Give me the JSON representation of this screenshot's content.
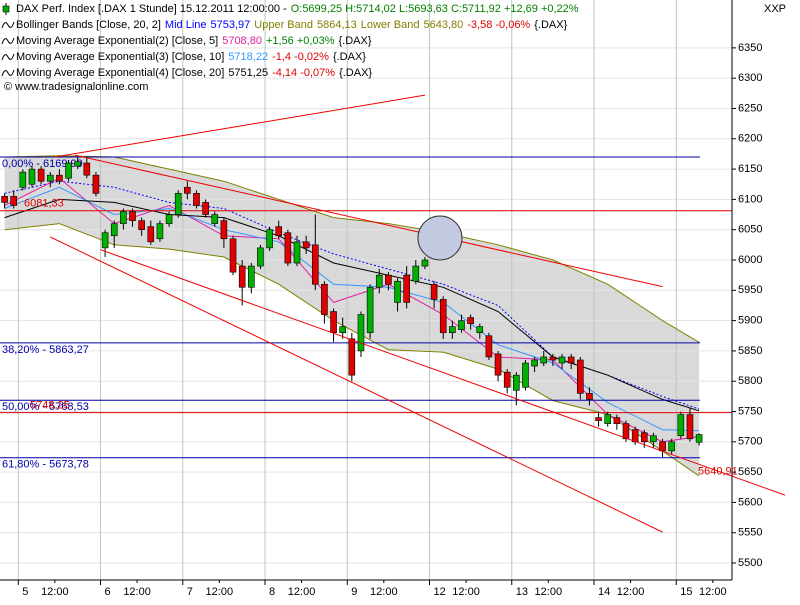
{
  "chart_data": {
    "type": "candlestick",
    "title": "DAX Perf. Index [.DAX  1 Stunde] 15.12.2011 12:00:00 -",
    "quote": "O:5699,25 H:5714,02 L:5693,63 C:5711,92 +12,69 +0,22%",
    "quote_color": "#008000",
    "symbol": "{.DAX}",
    "credit": "© www.tradesignalonline.com",
    "y_axis_label": "XXP",
    "xlim": [
      -0.5,
      79.6
    ],
    "ylim": [
      5472,
      6429
    ],
    "yticks": [
      5500,
      5550,
      5600,
      5650,
      5700,
      5750,
      5800,
      5850,
      5900,
      5950,
      6000,
      6050,
      6100,
      6150,
      6200,
      6250,
      6300,
      6350
    ],
    "xticks": [
      {
        "value": 1.5,
        "label": "5"
      },
      {
        "value": 10.5,
        "label": "6"
      },
      {
        "value": 19.5,
        "label": "7"
      },
      {
        "value": 28.5,
        "label": "8"
      },
      {
        "value": 37.5,
        "label": "9"
      },
      {
        "value": 46.5,
        "label": "12"
      },
      {
        "value": 55.5,
        "label": "13"
      },
      {
        "value": 64.5,
        "label": "14"
      },
      {
        "value": 73.5,
        "label": "15"
      }
    ],
    "xticks_minor": [
      {
        "value": 5.5,
        "label": "12:00"
      },
      {
        "value": 14.5,
        "label": "12:00"
      },
      {
        "value": 23.5,
        "label": "12:00"
      },
      {
        "value": 32.5,
        "label": "12:00"
      },
      {
        "value": 41.5,
        "label": "12:00"
      },
      {
        "value": 50.5,
        "label": "12:00"
      },
      {
        "value": 59.5,
        "label": "12:00"
      },
      {
        "value": 68.5,
        "label": "12:00"
      },
      {
        "value": 77.5,
        "label": "12:00"
      }
    ],
    "grid": true,
    "up_color": "#00b000",
    "down_color": "#e00000",
    "candles": {
      "open": [
        6105,
        6105,
        6120,
        6125,
        6150,
        6130,
        6140,
        6135,
        6155,
        6160,
        6140,
        6020,
        6040,
        6060,
        6080,
        6065,
        6055,
        6035,
        6060,
        6075,
        6120,
        6110,
        6095,
        6060,
        6065,
        6035,
        5990,
        5955,
        5990,
        6020,
        6055,
        6045,
        5995,
        6030,
        6025,
        5960,
        5915,
        5880,
        5870,
        5850,
        5880,
        5955,
        5975,
        5930,
        5975,
        5965,
        5990,
        5960,
        5935,
        5880,
        5885,
        5905,
        5880,
        5875,
        5845,
        5815,
        5785,
        5790,
        5825,
        5830,
        5840,
        5830,
        5840,
        5835,
        5780,
        5740,
        5730,
        5740,
        5730,
        5720,
        5715,
        5700,
        5700,
        5685,
        5710,
        5745,
        5699.25
      ],
      "high": [
        6110,
        6115,
        6150,
        6155,
        6155,
        6145,
        6150,
        6165,
        6170,
        6170,
        6145,
        6050,
        6065,
        6085,
        6085,
        6070,
        6065,
        6065,
        6080,
        6115,
        6130,
        6115,
        6100,
        6080,
        6070,
        6040,
        6000,
        5995,
        6025,
        6055,
        6065,
        6050,
        6040,
        6040,
        6075,
        5965,
        5920,
        5905,
        5880,
        5915,
        5960,
        5985,
        5980,
        5970,
        5990,
        6000,
        6005,
        5965,
        5940,
        5900,
        5910,
        5910,
        5895,
        5880,
        5850,
        5820,
        5815,
        5835,
        5840,
        5850,
        5845,
        5845,
        5845,
        5840,
        5790,
        5750,
        5750,
        5745,
        5735,
        5725,
        5720,
        5715,
        5705,
        5705,
        5750,
        5755,
        5714.02
      ],
      "low": [
        6085,
        6085,
        6115,
        6120,
        6125,
        6120,
        6125,
        6130,
        6150,
        6135,
        6105,
        6005,
        6020,
        6050,
        6055,
        6040,
        6025,
        6030,
        6055,
        6070,
        6100,
        6085,
        6070,
        6055,
        6020,
        5975,
        5925,
        5945,
        5985,
        6015,
        6035,
        5990,
        5990,
        6010,
        5950,
        5895,
        5865,
        5870,
        5800,
        5840,
        5870,
        5945,
        5950,
        5915,
        5920,
        5960,
        5985,
        5920,
        5870,
        5870,
        5880,
        5885,
        5870,
        5835,
        5800,
        5780,
        5760,
        5785,
        5815,
        5825,
        5825,
        5820,
        5820,
        5770,
        5760,
        5725,
        5725,
        5720,
        5700,
        5695,
        5690,
        5690,
        5675,
        5680,
        5705,
        5700,
        5693.63
      ],
      "close": [
        6095,
        6090,
        6145,
        6150,
        6130,
        6140,
        6130,
        6160,
        6162,
        6140,
        6110,
        6045,
        6060,
        6080,
        6065,
        6050,
        6030,
        6060,
        6075,
        6110,
        6110,
        6090,
        6075,
        6075,
        6035,
        5980,
        5955,
        5990,
        6020,
        6050,
        6040,
        5995,
        6030,
        6020,
        5960,
        5910,
        5880,
        5890,
        5810,
        5910,
        5955,
        5975,
        5960,
        5965,
        5930,
        5990,
        6000,
        5935,
        5880,
        5890,
        5900,
        5895,
        5890,
        5840,
        5810,
        5790,
        5810,
        5830,
        5835,
        5840,
        5835,
        5840,
        5830,
        5780,
        5770,
        5735,
        5745,
        5730,
        5705,
        5700,
        5700,
        5710,
        5685,
        5700,
        5745,
        5705,
        5711.92
      ]
    },
    "bollinger": {
      "name": "Bollinger Bands [Close, 20, 2]",
      "change": "-3,58 -0,06%",
      "change_color": "#e00000",
      "fill": "#d9d9d9"
    },
    "series": [
      {
        "name": "Mid Line",
        "color": "#0000ff",
        "dashed": true,
        "value_label": "5753,97",
        "x": [
          0,
          6,
          12,
          18,
          24,
          30,
          36,
          42,
          48,
          54,
          60,
          66,
          72,
          76
        ],
        "values": [
          6110,
          6130,
          6120,
          6095,
          6085,
          6045,
          6010,
          5985,
          5960,
          5925,
          5840,
          5810,
          5775,
          5753.97
        ]
      },
      {
        "name": "Upper Band",
        "color": "#808000",
        "value_label": "5864,13",
        "x": [
          0,
          6,
          12,
          18,
          24,
          30,
          36,
          42,
          48,
          54,
          60,
          66,
          72,
          76
        ],
        "values": [
          6170,
          6172,
          6170,
          6150,
          6130,
          6100,
          6070,
          6060,
          6045,
          6025,
          6000,
          5960,
          5900,
          5864.13
        ]
      },
      {
        "name": "Lower Band",
        "color": "#808000",
        "value_label": "5643,80",
        "x": [
          0,
          6,
          12,
          18,
          24,
          30,
          36,
          42,
          48,
          54,
          60,
          66,
          72,
          76
        ],
        "values": [
          6050,
          6060,
          6025,
          6018,
          6005,
          5960,
          5900,
          5852,
          5848,
          5820,
          5768,
          5745,
          5685,
          5643.8
        ]
      },
      {
        "name": "Moving Average Exponential(2) [Close, 5]",
        "color": "#e020a0",
        "value_label": "5708,80",
        "change": "+1,56 +0,03%",
        "change_color": "#008000",
        "x": [
          0,
          6,
          12,
          18,
          24,
          30,
          36,
          42,
          48,
          54,
          60,
          66,
          72,
          76
        ],
        "values": [
          6090,
          6135,
          6060,
          6090,
          6040,
          6035,
          5930,
          5960,
          5910,
          5840,
          5835,
          5745,
          5700,
          5708.8
        ]
      },
      {
        "name": "Moving Average Exponential(3) [Close, 10]",
        "color": "#3399ff",
        "value_label": "5718,22",
        "change": "-1,4 -0,02%",
        "change_color": "#e00000",
        "x": [
          0,
          6,
          12,
          18,
          24,
          30,
          36,
          42,
          48,
          54,
          60,
          66,
          72,
          76
        ],
        "values": [
          6085,
          6120,
          6075,
          6085,
          6050,
          6030,
          5960,
          5955,
          5930,
          5860,
          5830,
          5765,
          5720,
          5718.22
        ]
      },
      {
        "name": "Moving Average Exponential(4) [Close, 20]",
        "color": "#000000",
        "value_label": "5751,25",
        "change": "-4,14 -0,07%",
        "change_color": "#e00000",
        "x": [
          0,
          6,
          12,
          18,
          24,
          30,
          36,
          42,
          48,
          54,
          60,
          66,
          72,
          76
        ],
        "values": [
          6070,
          6100,
          6095,
          6075,
          6070,
          6040,
          5995,
          5975,
          5955,
          5915,
          5840,
          5810,
          5770,
          5751.25
        ]
      }
    ],
    "fib_levels": [
      {
        "value": 6169.99,
        "label": "0,00% - 6169,99",
        "color": "#0000aa"
      },
      {
        "value": 5863.27,
        "label": "38,20% - 5863,27",
        "color": "#0000aa"
      },
      {
        "value": 5768.53,
        "label": "50,00% - 5768,53",
        "color": "#0000aa"
      },
      {
        "value": 5673.78,
        "label": "61,80% - 5673,78",
        "color": "#0000aa"
      }
    ],
    "price_levels": [
      {
        "value": 6081.33,
        "label": "6081,33",
        "color": "#dd0000"
      },
      {
        "value": 5748.25,
        "label": "5748,25",
        "color": "#dd0000"
      }
    ],
    "price_labels": [
      {
        "value": 5640.91,
        "label": "5640,91",
        "color": "#dd0000"
      }
    ],
    "trendline_color": "#ee0000",
    "trendlines": [
      {
        "x": [
          5.5,
          46
        ],
        "y": [
          6170,
          6272
        ]
      },
      {
        "x": [
          7.7,
          72
        ],
        "y": [
          6173,
          5956
        ]
      },
      {
        "x": [
          5,
          72
        ],
        "y": [
          6038,
          5551
        ]
      },
      {
        "x": [
          10.5,
          85.4
        ],
        "y": [
          6017,
          5612
        ]
      }
    ]
  }
}
